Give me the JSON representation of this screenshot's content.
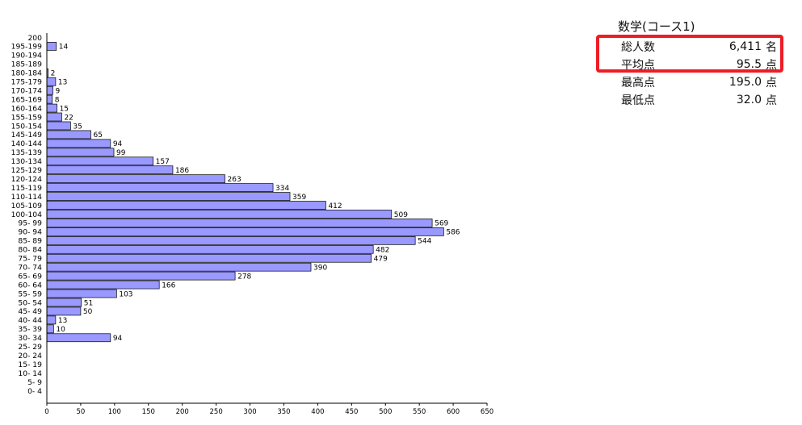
{
  "stats": {
    "title": "数学(コース1)",
    "rows": [
      {
        "label": "総人数",
        "value": "6,411",
        "unit": "名"
      },
      {
        "label": "平均点",
        "value": "95.5",
        "unit": "点"
      },
      {
        "label": "最高点",
        "value": "195.0",
        "unit": "点"
      },
      {
        "label": "最低点",
        "value": "32.0",
        "unit": "点"
      }
    ]
  },
  "colors": {
    "bar_fill": "#9999ff",
    "bar_stroke": "#000000",
    "highlight": "#ee1c25"
  },
  "chart_data": {
    "type": "bar",
    "orientation": "horizontal",
    "categories": [
      "200",
      "195-199",
      "190-194",
      "185-189",
      "180-184",
      "175-179",
      "170-174",
      "165-169",
      "160-164",
      "155-159",
      "150-154",
      "145-149",
      "140-144",
      "135-139",
      "130-134",
      "125-129",
      "120-124",
      "115-119",
      "110-114",
      "105-109",
      "100-104",
      "95- 99",
      "90- 94",
      "85- 89",
      "80- 84",
      "75- 79",
      "70- 74",
      "65- 69",
      "60- 64",
      "55- 59",
      "50- 54",
      "45- 49",
      "40- 44",
      "35- 39",
      "30- 34",
      "25- 29",
      "20- 24",
      "15- 19",
      "10- 14",
      "5- 9",
      "0- 4"
    ],
    "values": [
      0,
      14,
      0,
      0,
      2,
      13,
      9,
      8,
      15,
      22,
      35,
      65,
      94,
      99,
      157,
      186,
      263,
      334,
      359,
      412,
      509,
      569,
      586,
      544,
      482,
      479,
      390,
      278,
      166,
      103,
      51,
      50,
      13,
      10,
      94,
      0,
      0,
      0,
      0,
      0,
      0
    ],
    "xticks": [
      0,
      50,
      100,
      150,
      200,
      250,
      300,
      350,
      400,
      450,
      500,
      550,
      600,
      650
    ],
    "xlim": [
      0,
      650
    ],
    "grid": false
  }
}
